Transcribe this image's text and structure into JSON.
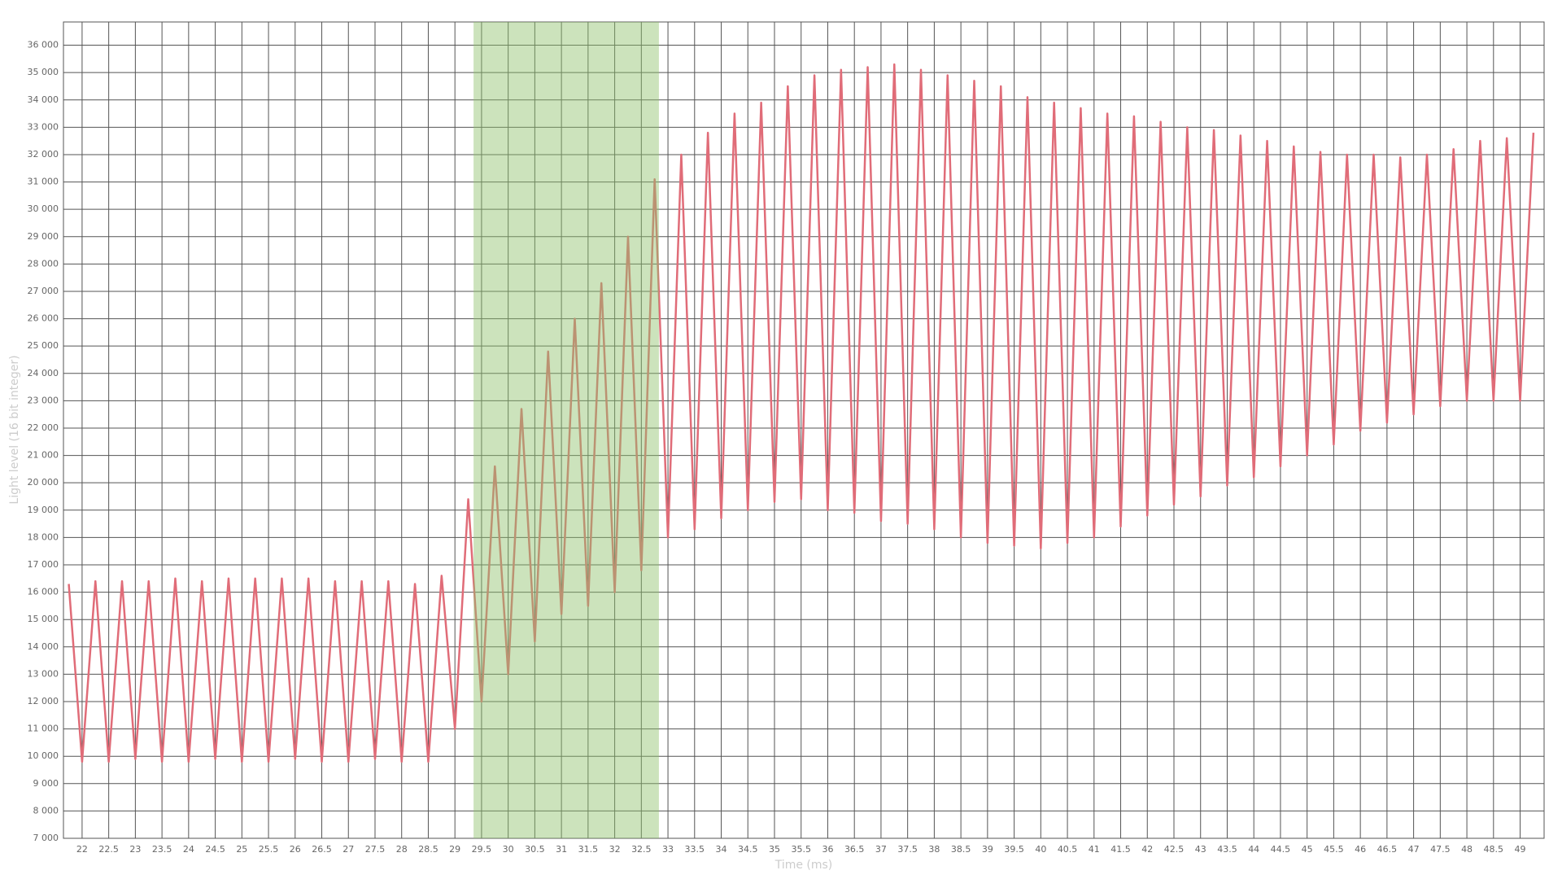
{
  "chart_data": {
    "type": "line",
    "x_label": "Time (ms)",
    "y_label": "Light level (16 bit integer)",
    "x": [
      21.75,
      22,
      22.25,
      22.5,
      22.75,
      23,
      23.25,
      23.5,
      23.75,
      24,
      24.25,
      24.5,
      24.75,
      25,
      25.25,
      25.5,
      25.75,
      26,
      26.25,
      26.5,
      26.75,
      27,
      27.25,
      27.5,
      27.75,
      28,
      28.25,
      28.5,
      28.75,
      29,
      29.25,
      29.5,
      29.75,
      30,
      30.25,
      30.5,
      30.75,
      31,
      31.25,
      31.5,
      31.75,
      32,
      32.25,
      32.5,
      32.75,
      33,
      33.25,
      33.5,
      33.75,
      34,
      34.25,
      34.5,
      34.75,
      35,
      35.25,
      35.5,
      35.75,
      36,
      36.25,
      36.5,
      36.75,
      37,
      37.25,
      37.5,
      37.75,
      38,
      38.25,
      38.5,
      38.75,
      39,
      39.25,
      39.5,
      39.75,
      40,
      40.25,
      40.5,
      40.75,
      41,
      41.25,
      41.5,
      41.75,
      42,
      42.25,
      42.5,
      42.75,
      43,
      43.25,
      43.5,
      43.75,
      44,
      44.25,
      44.5,
      44.75,
      45,
      45.25,
      45.5,
      45.75,
      46,
      46.25,
      46.5,
      46.75,
      47,
      47.25,
      47.5,
      47.75,
      48,
      48.25,
      48.5,
      48.75,
      49,
      49.25
    ],
    "values": [
      16300,
      9800,
      16400,
      9800,
      16400,
      9900,
      16400,
      9800,
      16500,
      9800,
      16400,
      9900,
      16500,
      9800,
      16500,
      9800,
      16500,
      9900,
      16500,
      9800,
      16400,
      9800,
      16400,
      9900,
      16400,
      9800,
      16300,
      9800,
      16600,
      11000,
      19400,
      12000,
      20600,
      13000,
      22700,
      14200,
      24800,
      15200,
      26000,
      15500,
      27300,
      16000,
      29000,
      16800,
      31100,
      18000,
      32000,
      18300,
      32800,
      18700,
      33500,
      19000,
      33900,
      19300,
      34500,
      19400,
      34900,
      19000,
      35100,
      18900,
      35200,
      18600,
      35300,
      18500,
      35100,
      18300,
      34900,
      18000,
      34700,
      17800,
      34500,
      17700,
      34100,
      17600,
      33900,
      17800,
      33700,
      18000,
      33500,
      18400,
      33400,
      18800,
      33200,
      19200,
      33000,
      19500,
      32900,
      19900,
      32700,
      20200,
      32500,
      20600,
      32300,
      21000,
      32100,
      21400,
      32000,
      21900,
      32000,
      22200,
      31900,
      22500,
      32000,
      22800,
      32200,
      23000,
      32500,
      23000,
      32600,
      23000,
      32800
    ],
    "color": "#e06c78",
    "highlight": {
      "xlim": [
        29.35,
        32.83
      ],
      "color": "#8fc26a"
    },
    "xlim": [
      21.65,
      49.45
    ],
    "ylim": [
      7000,
      36850
    ],
    "xticks": [
      22,
      22.5,
      23,
      23.5,
      24,
      24.5,
      25,
      25.5,
      26,
      26.5,
      27,
      27.5,
      28,
      28.5,
      29,
      29.5,
      30,
      30.5,
      31,
      31.5,
      32,
      32.5,
      33,
      33.5,
      34,
      34.5,
      35,
      35.5,
      36,
      36.5,
      37,
      37.5,
      38,
      38.5,
      39,
      39.5,
      40,
      40.5,
      41,
      41.5,
      42,
      42.5,
      43,
      43.5,
      44,
      44.5,
      45,
      45.5,
      46,
      46.5,
      47,
      47.5,
      48,
      48.5,
      49
    ],
    "yticks": [
      {
        "value": 7000,
        "label": "7 000"
      },
      {
        "value": 8000,
        "label": "8 000"
      },
      {
        "value": 9000,
        "label": "9 000"
      },
      {
        "value": 10000,
        "label": "10 000"
      },
      {
        "value": 11000,
        "label": "11 000"
      },
      {
        "value": 12000,
        "label": "12 000"
      },
      {
        "value": 13000,
        "label": "13 000"
      },
      {
        "value": 14000,
        "label": "14 000"
      },
      {
        "value": 15000,
        "label": "15 000"
      },
      {
        "value": 16000,
        "label": "16 000"
      },
      {
        "value": 17000,
        "label": "17 000"
      },
      {
        "value": 18000,
        "label": "18 000"
      },
      {
        "value": 19000,
        "label": "19 000"
      },
      {
        "value": 20000,
        "label": "20 000"
      },
      {
        "value": 21000,
        "label": "21 000"
      },
      {
        "value": 22000,
        "label": "22 000"
      },
      {
        "value": 23000,
        "label": "23 000"
      },
      {
        "value": 24000,
        "label": "24 000"
      },
      {
        "value": 25000,
        "label": "25 000"
      },
      {
        "value": 26000,
        "label": "26 000"
      },
      {
        "value": 27000,
        "label": "27 000"
      },
      {
        "value": 28000,
        "label": "28 000"
      },
      {
        "value": 29000,
        "label": "29 000"
      },
      {
        "value": 30000,
        "label": "30 000"
      },
      {
        "value": 31000,
        "label": "31 000"
      },
      {
        "value": 32000,
        "label": "32 000"
      },
      {
        "value": 33000,
        "label": "33 000"
      },
      {
        "value": 34000,
        "label": "34 000"
      },
      {
        "value": 35000,
        "label": "35 000"
      },
      {
        "value": 36000,
        "label": "36 000"
      }
    ],
    "grid": true
  }
}
